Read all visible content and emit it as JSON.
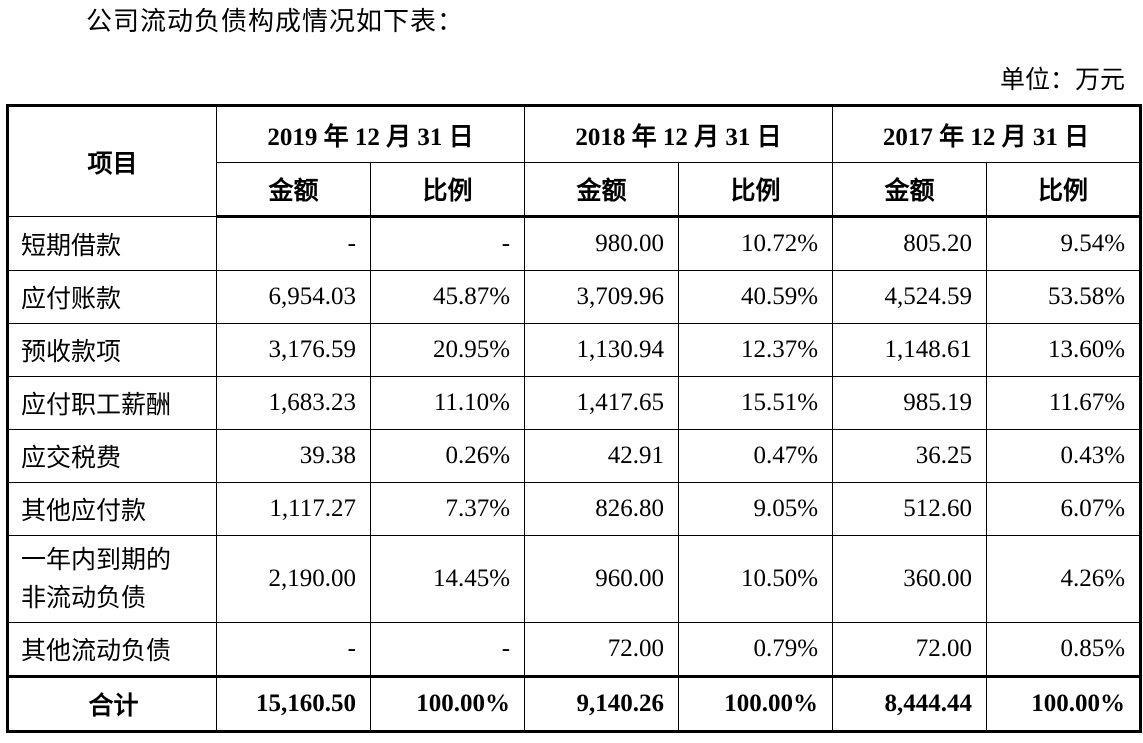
{
  "intro": "公司流动负债构成情况如下表：",
  "unit": "单位：万元",
  "table": {
    "item_header": "项目",
    "years": [
      "2019 年 12 月 31 日",
      "2018 年 12 月 31 日",
      "2017 年 12 月 31 日"
    ],
    "amount_label": "金额",
    "ratio_label": "比例",
    "rows": [
      {
        "name": "短期借款",
        "cells": [
          "-",
          "-",
          "980.00",
          "10.72%",
          "805.20",
          "9.54%"
        ]
      },
      {
        "name": "应付账款",
        "cells": [
          "6,954.03",
          "45.87%",
          "3,709.96",
          "40.59%",
          "4,524.59",
          "53.58%"
        ]
      },
      {
        "name": "预收款项",
        "cells": [
          "3,176.59",
          "20.95%",
          "1,130.94",
          "12.37%",
          "1,148.61",
          "13.60%"
        ]
      },
      {
        "name": "应付职工薪酬",
        "cells": [
          "1,683.23",
          "11.10%",
          "1,417.65",
          "15.51%",
          "985.19",
          "11.67%"
        ]
      },
      {
        "name": "应交税费",
        "cells": [
          "39.38",
          "0.26%",
          "42.91",
          "0.47%",
          "36.25",
          "0.43%"
        ]
      },
      {
        "name": "其他应付款",
        "cells": [
          "1,117.27",
          "7.37%",
          "826.80",
          "9.05%",
          "512.60",
          "6.07%"
        ]
      },
      {
        "name": "一年内到期的非流动负债",
        "cells": [
          "2,190.00",
          "14.45%",
          "960.00",
          "10.50%",
          "360.00",
          "4.26%"
        ]
      },
      {
        "name": "其他流动负债",
        "cells": [
          "-",
          "-",
          "72.00",
          "0.79%",
          "72.00",
          "0.85%"
        ]
      }
    ],
    "total": {
      "name": "合计",
      "cells": [
        "15,160.50",
        "100.00%",
        "9,140.26",
        "100.00%",
        "8,444.44",
        "100.00%"
      ]
    }
  }
}
